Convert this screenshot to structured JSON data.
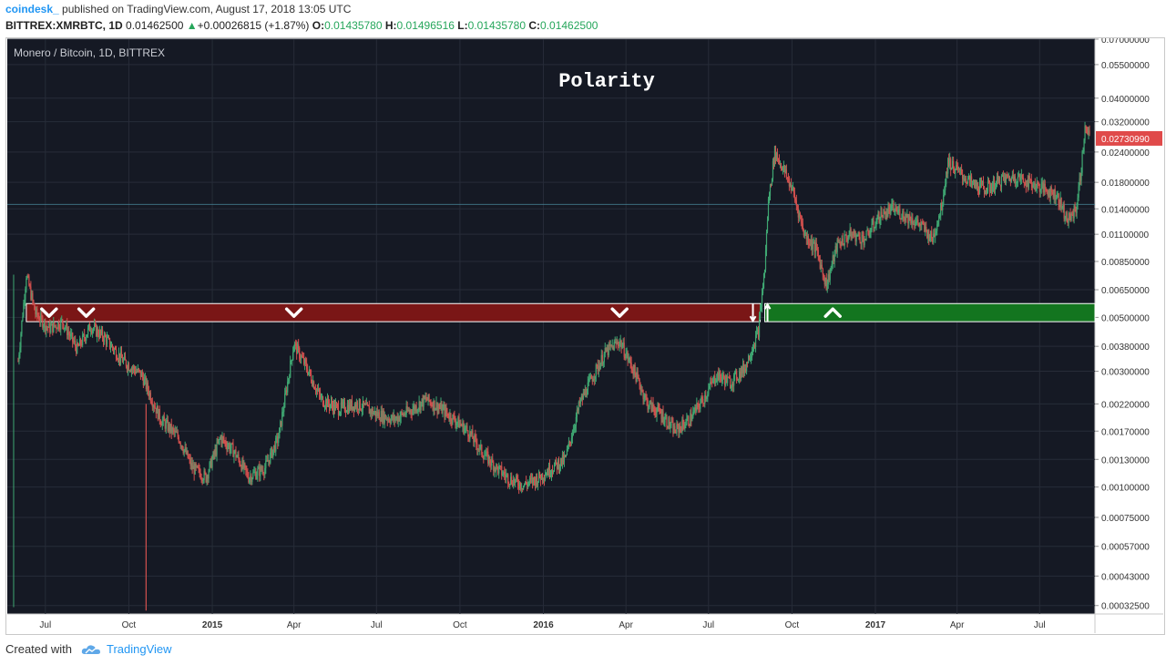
{
  "header": {
    "user": "coindesk_",
    "published": "published on TradingView.com, August 17, 2018 13:05 UTC",
    "symbol": "BITTREX:XMRBTC, 1D",
    "last": "0.01462500",
    "change_arrow": "▲",
    "change": "+0.00026815 (+1.87%)",
    "o_label": "O:",
    "o_val": "0.01435780",
    "h_label": "H:",
    "h_val": "0.01496516",
    "l_label": "L:",
    "l_val": "0.01435780",
    "c_label": "C:",
    "c_val": "0.01462500"
  },
  "footer": {
    "created_with": "Created with",
    "brand": "TradingView",
    "logo_icon": "tradingview-cloud-icon"
  },
  "colors": {
    "background": "#151924",
    "grid": "#272c38",
    "up": "#3fa772",
    "down": "#d2504e",
    "resistance": "#7a1616",
    "support": "#13751f",
    "price_tag": "#e04a4a"
  },
  "chart_data": {
    "type": "candlestick",
    "title": "Polarity",
    "subtitle": "Monero / Bitcoin, 1D, BITTREX",
    "y_scale": "log",
    "ylim": [
      0.0003,
      0.07
    ],
    "y_ticks": [
      "0.07000000",
      "0.05500000",
      "0.04000000",
      "0.03200000",
      "0.02400000",
      "0.01800000",
      "0.01400000",
      "0.01100000",
      "0.00850000",
      "0.00650000",
      "0.00500000",
      "0.00380000",
      "0.00300000",
      "0.00220000",
      "0.00170000",
      "0.00130000",
      "0.00100000",
      "0.00075000",
      "0.00057000",
      "0.00043000",
      "0.00032500"
    ],
    "x_ticks": [
      "Jul",
      "Oct",
      "2015",
      "Apr",
      "Jul",
      "Oct",
      "2016",
      "Apr",
      "Jul",
      "Oct",
      "2017",
      "Apr",
      "Jul"
    ],
    "x_ticks_bold": [
      "2015",
      "2016",
      "2017"
    ],
    "last_price_label": "0.02730990",
    "last_price": 0.0273099,
    "grid": true,
    "price_path": [
      [
        "2014-06-01",
        0.0033
      ],
      [
        "2014-06-10",
        0.0075
      ],
      [
        "2014-06-20",
        0.0052
      ],
      [
        "2014-07-05",
        0.0045
      ],
      [
        "2014-07-20",
        0.0048
      ],
      [
        "2014-08-05",
        0.0037
      ],
      [
        "2014-08-20",
        0.0046
      ],
      [
        "2014-09-05",
        0.0041
      ],
      [
        "2014-09-25",
        0.0033
      ],
      [
        "2014-10-15",
        0.0029
      ],
      [
        "2014-11-05",
        0.0019
      ],
      [
        "2014-11-25",
        0.0016
      ],
      [
        "2014-12-10",
        0.0012
      ],
      [
        "2014-12-25",
        0.0011
      ],
      [
        "2015-01-10",
        0.0016
      ],
      [
        "2015-01-25",
        0.0014
      ],
      [
        "2015-02-10",
        0.0011
      ],
      [
        "2015-02-28",
        0.0012
      ],
      [
        "2015-03-15",
        0.0016
      ],
      [
        "2015-04-01",
        0.0039
      ],
      [
        "2015-04-15",
        0.0031
      ],
      [
        "2015-05-01",
        0.0023
      ],
      [
        "2015-05-20",
        0.0021
      ],
      [
        "2015-06-10",
        0.0022
      ],
      [
        "2015-07-01",
        0.002
      ],
      [
        "2015-07-20",
        0.0019
      ],
      [
        "2015-08-10",
        0.0021
      ],
      [
        "2015-08-25",
        0.0023
      ],
      [
        "2015-09-10",
        0.0021
      ],
      [
        "2015-09-25",
        0.0019
      ],
      [
        "2015-10-10",
        0.0017
      ],
      [
        "2015-10-25",
        0.0014
      ],
      [
        "2015-11-10",
        0.0012
      ],
      [
        "2015-11-25",
        0.00108
      ],
      [
        "2015-12-10",
        0.00102
      ],
      [
        "2015-12-25",
        0.00108
      ],
      [
        "2016-01-10",
        0.0012
      ],
      [
        "2016-01-25",
        0.0013
      ],
      [
        "2016-02-10",
        0.0022
      ],
      [
        "2016-02-25",
        0.0029
      ],
      [
        "2016-03-10",
        0.0036
      ],
      [
        "2016-03-25",
        0.004
      ],
      [
        "2016-04-10",
        0.003
      ],
      [
        "2016-04-25",
        0.0022
      ],
      [
        "2016-05-10",
        0.002
      ],
      [
        "2016-05-25",
        0.0017
      ],
      [
        "2016-06-10",
        0.0019
      ],
      [
        "2016-06-25",
        0.0023
      ],
      [
        "2016-07-10",
        0.0029
      ],
      [
        "2016-07-25",
        0.0027
      ],
      [
        "2016-08-10",
        0.0031
      ],
      [
        "2016-08-25",
        0.0044
      ],
      [
        "2016-09-01",
        0.008
      ],
      [
        "2016-09-05",
        0.015
      ],
      [
        "2016-09-12",
        0.024
      ],
      [
        "2016-09-20",
        0.021
      ],
      [
        "2016-10-01",
        0.017
      ],
      [
        "2016-10-15",
        0.011
      ],
      [
        "2016-10-28",
        0.0095
      ],
      [
        "2016-11-08",
        0.0068
      ],
      [
        "2016-11-20",
        0.01
      ],
      [
        "2016-12-05",
        0.011
      ],
      [
        "2016-12-20",
        0.0105
      ],
      [
        "2017-01-05",
        0.013
      ],
      [
        "2017-01-20",
        0.014
      ],
      [
        "2017-02-05",
        0.013
      ],
      [
        "2017-02-20",
        0.012
      ],
      [
        "2017-03-05",
        0.0105
      ],
      [
        "2017-03-15",
        0.0145
      ],
      [
        "2017-03-22",
        0.022
      ],
      [
        "2017-04-05",
        0.0195
      ],
      [
        "2017-04-20",
        0.0175
      ],
      [
        "2017-05-05",
        0.017
      ],
      [
        "2017-05-20",
        0.0185
      ],
      [
        "2017-06-05",
        0.019
      ],
      [
        "2017-06-20",
        0.018
      ],
      [
        "2017-07-05",
        0.017
      ],
      [
        "2017-07-20",
        0.016
      ],
      [
        "2017-08-01",
        0.0125
      ],
      [
        "2017-08-10",
        0.014
      ],
      [
        "2017-08-15",
        0.019
      ],
      [
        "2017-08-20",
        0.03
      ],
      [
        "2017-08-25",
        0.0273
      ]
    ],
    "annotations": {
      "resistance_zone": {
        "from": "2014-06-10",
        "to": "2016-08-27",
        "low": 0.0048,
        "high": 0.0057
      },
      "support_zone": {
        "from": "2016-09-01",
        "to": "2017-08-31",
        "low": 0.0048,
        "high": 0.0057
      },
      "down_markers": [
        "2014-07-05",
        "2014-08-15",
        "2015-04-01",
        "2016-03-25"
      ],
      "up_markers": [
        "2016-11-15"
      ],
      "flip_arrows": [
        "2016-08-25"
      ],
      "horizontal_line": 0.0146
    }
  }
}
